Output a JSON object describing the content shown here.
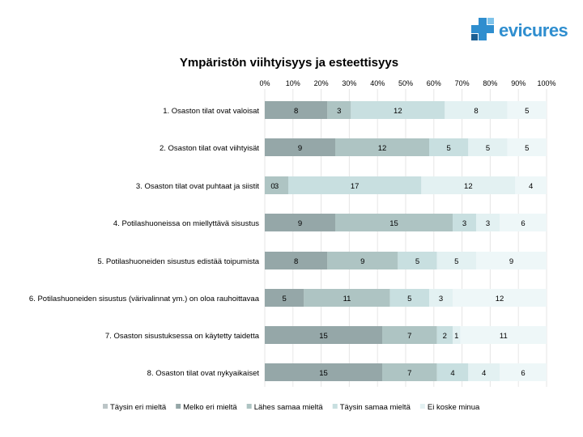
{
  "logo": {
    "text": "evicures"
  },
  "chart_data": {
    "type": "bar",
    "orientation": "horizontal",
    "stacked": "percent",
    "title": "Ympäristön viihtyisyys ja esteettisyys",
    "xlabel": "",
    "ylabel": "",
    "xlim": [
      0,
      100
    ],
    "x_ticks": [
      "0%",
      "10%",
      "20%",
      "30%",
      "40%",
      "50%",
      "60%",
      "70%",
      "80%",
      "90%",
      "100%"
    ],
    "legend_position": "bottom",
    "categories": [
      "1. Osaston tilat ovat valoisat",
      "2. Osaston tilat ovat viihtyisät",
      "3. Osaston tilat ovat puhtaat ja siistit",
      "4. Potilashuoneissa on miellyttävä sisustus",
      "5. Potilashuoneiden sisustus edistää toipumista",
      "6. Potilashuoneiden sisustus (värivalinnat ym.) on oloa rauhoittavaa",
      "7. Osaston sisustuksessa on käytetty taidetta",
      "8. Osaston tilat ovat nykyaikaiset"
    ],
    "series": [
      {
        "name": "Täysin eri mieltä",
        "color": "#bcc5c7",
        "values": [
          0,
          0,
          0,
          0,
          0,
          0,
          0,
          0
        ],
        "labels": [
          "",
          "",
          "",
          "",
          "",
          "",
          "",
          ""
        ]
      },
      {
        "name": "Melko eri mieltä",
        "color": "#95a7a8",
        "values": [
          8,
          9,
          0,
          9,
          8,
          5,
          15,
          15
        ],
        "labels": [
          "8",
          "9",
          "0",
          "9",
          "8",
          "5",
          "15",
          "15"
        ]
      },
      {
        "name": "Lähes samaa mieltä",
        "color": "#aec4c3",
        "values": [
          3,
          12,
          3,
          15,
          9,
          11,
          7,
          7
        ],
        "labels": [
          "3",
          "12",
          "3",
          "15",
          "9",
          "11",
          "7",
          "7"
        ]
      },
      {
        "name": "Täysin samaa mieltä",
        "color": "#c8dfe0",
        "values": [
          12,
          5,
          17,
          3,
          5,
          5,
          2,
          4
        ],
        "labels": [
          "12",
          "5",
          "17",
          "3",
          "5",
          "5",
          "2",
          "4"
        ]
      },
      {
        "name": "Ei koske minua",
        "color": "#e3f1f2",
        "values": [
          8,
          5,
          12,
          3,
          5,
          3,
          1,
          4
        ],
        "labels": [
          "8",
          "5",
          "12",
          "3",
          "5",
          "3",
          "1",
          "4"
        ]
      },
      {
        "name": "",
        "color": "#eef7f8",
        "values": [
          5,
          5,
          4,
          6,
          9,
          12,
          11,
          6
        ],
        "labels": [
          "5",
          "5",
          "4",
          "6",
          "9",
          "12",
          "11",
          "6"
        ]
      }
    ]
  }
}
